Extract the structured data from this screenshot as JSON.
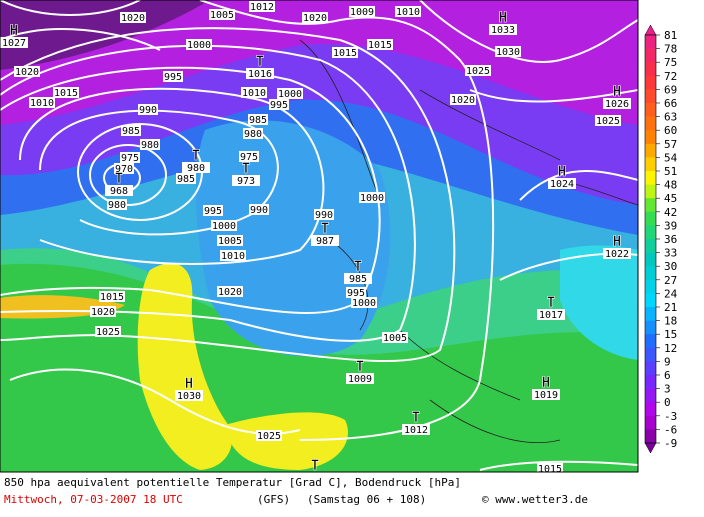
{
  "caption": {
    "line1": "850 hpa aequivalent potentielle Temperatur [Grad C], Bodendruck [hPa]",
    "date": "Mittwoch, 07-03-2007  18 UTC",
    "model": "(GFS)",
    "run": "(Samstag 06 + 108)",
    "credit": "© www.wetter3.de"
  },
  "legend": {
    "labels": [
      81,
      78,
      75,
      72,
      69,
      66,
      63,
      60,
      57,
      54,
      51,
      48,
      45,
      42,
      39,
      36,
      33,
      30,
      27,
      24,
      21,
      18,
      15,
      12,
      9,
      6,
      3,
      0,
      -3,
      -6,
      -9
    ]
  },
  "isobar_labels": [
    1020,
    1005,
    1012,
    1020,
    1009,
    1010,
    1000,
    1015,
    1015,
    1030,
    1025,
    1020,
    1015,
    1010,
    995,
    1010,
    1000,
    995,
    990,
    985,
    980,
    985,
    980,
    975,
    975,
    970,
    985,
    980,
    995,
    990,
    1000,
    1005,
    1010,
    1000,
    990,
    1020,
    1015,
    1020,
    1025,
    995,
    1000,
    1005,
    1020,
    1025,
    1025,
    1015
  ],
  "centers": [
    {
      "symbol": "H",
      "value": 1027
    },
    {
      "symbol": "H",
      "value": 1033
    },
    {
      "symbol": "T",
      "value": 1016
    },
    {
      "symbol": "T",
      "value": 968
    },
    {
      "symbol": "T",
      "value": 980
    },
    {
      "symbol": "T",
      "value": 973
    },
    {
      "symbol": "T",
      "value": 987
    },
    {
      "symbol": "T",
      "value": 985
    },
    {
      "symbol": "H",
      "value": 1026
    },
    {
      "symbol": "H",
      "value": 1024
    },
    {
      "symbol": "H",
      "value": 1022
    },
    {
      "symbol": "T",
      "value": 1017
    },
    {
      "symbol": "T",
      "value": 1009
    },
    {
      "symbol": "H",
      "value": 1030
    },
    {
      "symbol": "H",
      "value": 1019
    },
    {
      "symbol": "T",
      "value": 1012
    },
    {
      "symbol": "T"
    }
  ]
}
